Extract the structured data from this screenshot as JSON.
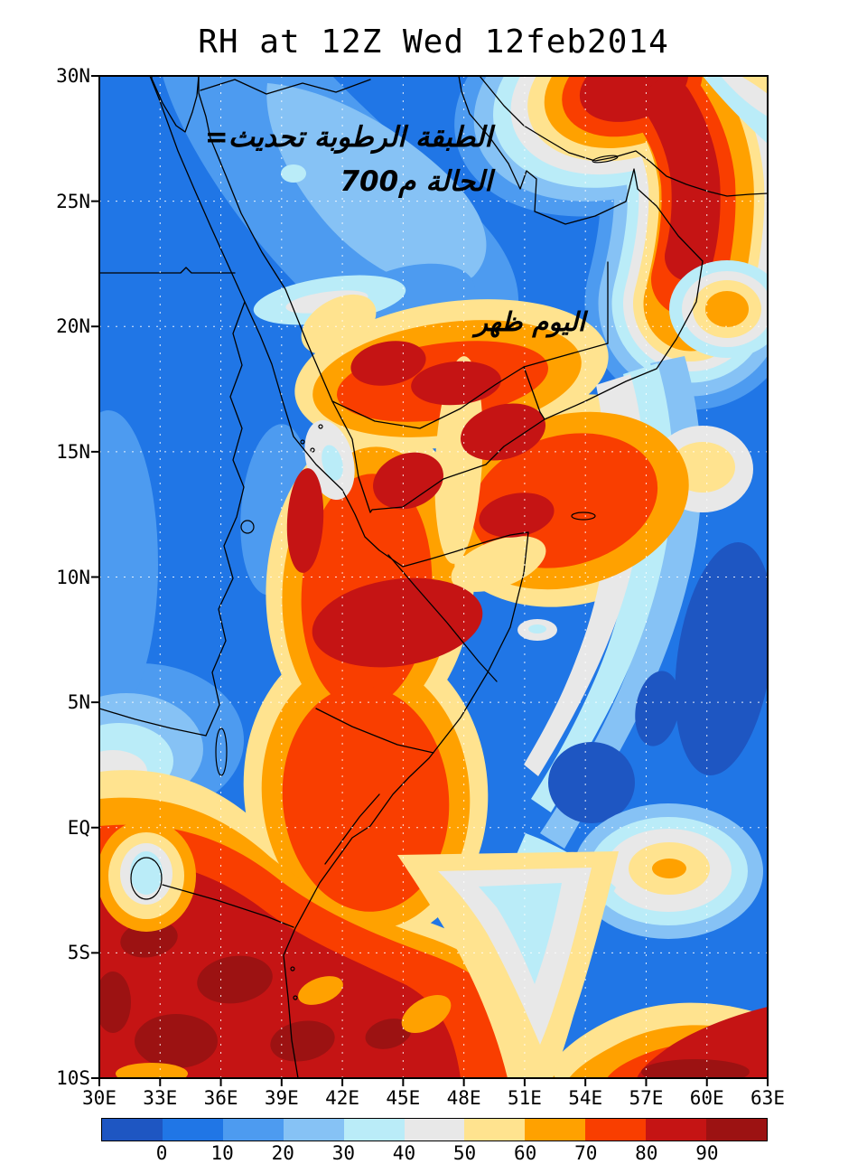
{
  "title": "RH at 12Z Wed 12feb2014",
  "palette": [
    "#1e56c2",
    "#2076e6",
    "#4d9bf0",
    "#86c2f5",
    "#baecf8",
    "#e8e8e8",
    "#ffe38f",
    "#ffa100",
    "#f93e00",
    "#c51414",
    "#9c1212"
  ],
  "axes": {
    "lat_ticks": [
      "30N",
      "25N",
      "20N",
      "15N",
      "10N",
      "5N",
      "EQ",
      "5S",
      "10S"
    ],
    "lon_ticks": [
      "30E",
      "33E",
      "36E",
      "39E",
      "42E",
      "45E",
      "48E",
      "51E",
      "54E",
      "57E",
      "60E",
      "63E"
    ]
  },
  "colorbar": {
    "labels": [
      "0",
      "10",
      "20",
      "30",
      "40",
      "50",
      "60",
      "70",
      "80",
      "90"
    ],
    "segment_count": 11
  },
  "annotations": {
    "line1_tokens_ltr": [
      "=تحديث",
      "الرطوبة",
      "الطبقة"
    ],
    "line2_tokens_ltr": [
      "700م",
      "الحالة"
    ],
    "line3_tokens_ltr": [
      "ظهر",
      "اليوم"
    ]
  },
  "chart_data": {
    "type": "filled_contour_map",
    "title": "RH at 12Z Wed 12feb2014",
    "variable": "relative humidity (%)",
    "lon_range_deg_east": [
      30,
      63
    ],
    "lat_range_deg_north": [
      -10,
      30
    ],
    "lon_tick_labels": [
      "30E",
      "33E",
      "36E",
      "39E",
      "42E",
      "45E",
      "48E",
      "51E",
      "54E",
      "57E",
      "60E",
      "63E"
    ],
    "lat_tick_labels": [
      "30N",
      "25N",
      "20N",
      "15N",
      "10N",
      "5N",
      "EQ",
      "5S",
      "10S"
    ],
    "contour_levels": [
      0,
      10,
      20,
      30,
      40,
      50,
      60,
      70,
      80,
      90
    ],
    "colorbar_colors": [
      "#1e56c2",
      "#2076e6",
      "#4d9bf0",
      "#86c2f5",
      "#baecf8",
      "#e8e8e8",
      "#ffe38f",
      "#ffa100",
      "#f93e00",
      "#c51414",
      "#9c1212"
    ],
    "legend_position": "bottom horizontal colorbar",
    "grid": "dotted white graticule every 3 deg lon x 5 deg lat",
    "basemap": "black coastlines and country borders (NE Africa, Arabian Peninsula, Horn of Africa, Iran)",
    "moisture_features": [
      {
        "region": "Egypt, northern Saudi Arabia, Red Sea north, central Iran plateau",
        "rh_percent": "10-30 (dry, blues)"
      },
      {
        "region": "plume from southern Iran across the Strait of Hormuz / Gulf of Oman, ~56-60E 21-30N",
        "rh_percent": "80->90 (moist, dark red core)"
      },
      {
        "region": "small moist pocket near 60E 21N",
        "rh_percent": "60-70 (orange)"
      },
      {
        "region": "broad humid mass over SW Saudi Arabia, Yemen, Eritrea, Ethiopia, NW Somalia, 36-54E 0-19N",
        "rh_percent": "60->90 with multiple >90 cores"
      },
      {
        "region": "Arabian Sea east of Somalia, ~55-63E 0-12N",
        "rh_percent": "<10 (dark blue minima)"
      },
      {
        "region": "pockets near 58E 14-16N and 57E 2S",
        "rh_percent": "50-70 (yellow/orange in gray ring)"
      },
      {
        "region": "East Africa south of the equator (Tanzania, S Kenya, Lake Victoria basin)",
        "rh_percent": "70->90 (dark red field)"
      },
      {
        "region": "dry intrusion ~44-47E between equator and 10S",
        "rh_percent": "30-50 (gray/cyan wedge)"
      }
    ]
  }
}
